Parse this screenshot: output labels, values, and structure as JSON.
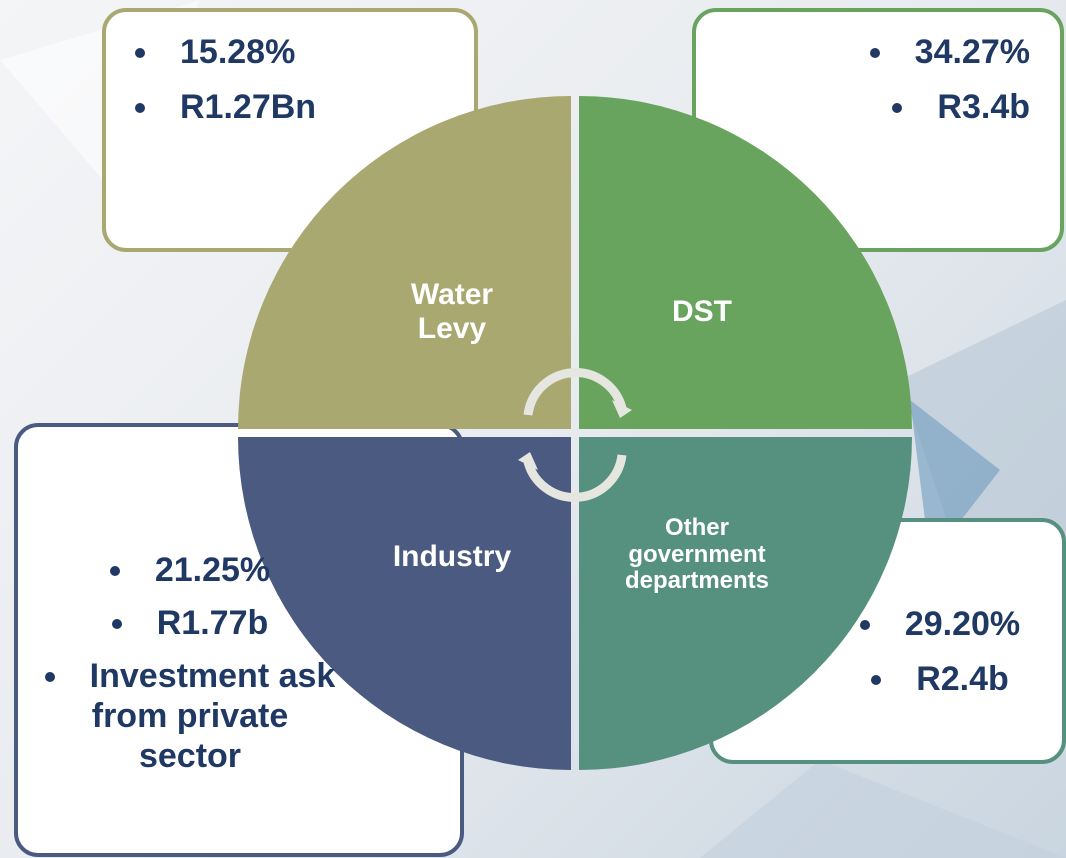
{
  "quadrants": [
    {
      "label": "Water Levy",
      "bullets": [
        "15.28%",
        "R1.27Bn"
      ]
    },
    {
      "label": "DST",
      "bullets": [
        "34.27%",
        "R3.4b"
      ]
    },
    {
      "label": "Industry",
      "bullets": [
        "21.25%",
        "R1.77b",
        "Investment ask from private sector"
      ]
    },
    {
      "label": "Other government departments",
      "bullets": [
        "29.20%",
        "R2.4b"
      ]
    }
  ]
}
